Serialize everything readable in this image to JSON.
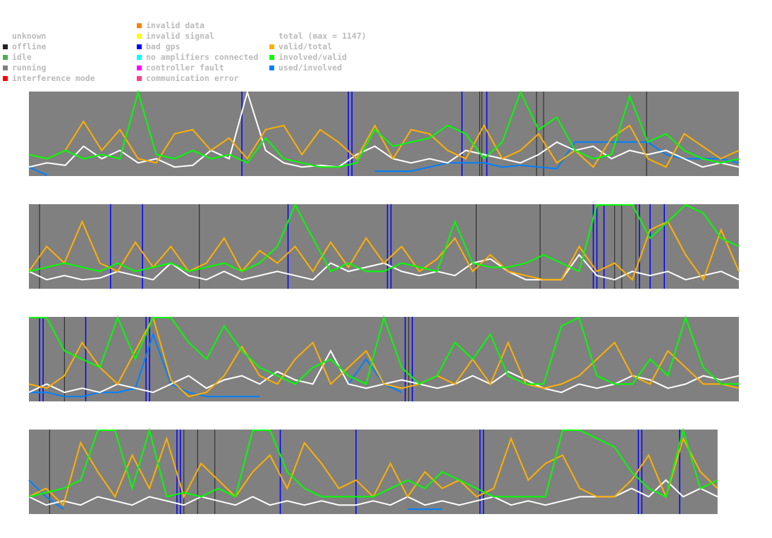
{
  "legend": {
    "col1": [
      {
        "label": "unknown",
        "color": "#ffffff"
      },
      {
        "label": "offline",
        "color": "#222222"
      },
      {
        "label": "idle",
        "color": "#4caf50"
      },
      {
        "label": "running",
        "color": "#808080"
      },
      {
        "label": "interference mode",
        "color": "#ff0000"
      }
    ],
    "col2": [
      {
        "label": "invalid data",
        "color": "#ff8000"
      },
      {
        "label": "invalid signal",
        "color": "#ffff00"
      },
      {
        "label": "bad gps",
        "color": "#0000ff"
      },
      {
        "label": "no amplifiers connected",
        "color": "#00ffff"
      },
      {
        "label": "controller fault",
        "color": "#ff00ff"
      },
      {
        "label": "communication error",
        "color": "#ff4080"
      }
    ],
    "col3": [
      {
        "label": "total (max = 1147)",
        "color": "#ffffff"
      },
      {
        "label": "valid/total",
        "color": "#ffb000"
      },
      {
        "label": "involved/valid",
        "color": "#00ff00"
      },
      {
        "label": "used/involved",
        "color": "#0080ff"
      }
    ]
  },
  "chart_data": {
    "type": "line",
    "y_range": [
      0,
      1
    ],
    "x_range": [
      0,
      100
    ],
    "colors": {
      "running": "#808080",
      "total": "#ffffff",
      "valid_total": "#ffb000",
      "involved_valid": "#00ff00",
      "used_involved": "#0080ff",
      "bad_gps": "#0000ff",
      "offline": "#222222"
    },
    "panels": [
      {
        "span": 1.0,
        "bad_gps": [
          30,
          45,
          45.5,
          61,
          64.5
        ],
        "offline": [
          63.5,
          63.8,
          71.5,
          72.5,
          87
        ],
        "valid_total": [
          0.25,
          0.2,
          0.3,
          0.65,
          0.3,
          0.55,
          0.2,
          0.15,
          0.5,
          0.55,
          0.3,
          0.45,
          0.2,
          0.55,
          0.6,
          0.25,
          0.55,
          0.4,
          0.2,
          0.6,
          0.2,
          0.55,
          0.5,
          0.3,
          0.2,
          0.6,
          0.2,
          0.3,
          0.5,
          0.15,
          0.3,
          0.1,
          0.45,
          0.6,
          0.2,
          0.1,
          0.5,
          0.35,
          0.2,
          0.3
        ],
        "involved_valid": [
          0.25,
          0.2,
          0.3,
          0.2,
          0.25,
          0.2,
          1.0,
          0.25,
          0.2,
          0.3,
          0.2,
          0.25,
          0.15,
          0.45,
          0.2,
          0.15,
          0.1,
          0.1,
          0.15,
          0.55,
          0.35,
          0.4,
          0.45,
          0.6,
          0.5,
          0.2,
          0.4,
          1.0,
          0.55,
          0.7,
          0.3,
          0.2,
          0.25,
          0.95,
          0.4,
          0.5,
          0.3,
          0.2,
          0.15,
          0.2
        ],
        "total": [
          0.1,
          0.15,
          0.12,
          0.35,
          0.2,
          0.3,
          0.15,
          0.2,
          0.1,
          0.12,
          0.3,
          0.2,
          1.0,
          0.3,
          0.15,
          0.1,
          0.12,
          0.1,
          0.25,
          0.35,
          0.2,
          0.15,
          0.2,
          0.15,
          0.3,
          0.25,
          0.2,
          0.15,
          0.25,
          0.4,
          0.3,
          0.35,
          0.2,
          0.3,
          0.25,
          0.3,
          0.2,
          0.1,
          0.15,
          0.1
        ],
        "used_involved": [
          0.1,
          0,
          null,
          null,
          null,
          null,
          null,
          null,
          null,
          null,
          null,
          null,
          null,
          null,
          null,
          null,
          null,
          null,
          null,
          0.05,
          0.05,
          0.05,
          0.1,
          0.15,
          0.15,
          0.15,
          0.1,
          0.12,
          0.1,
          0.08,
          0.4,
          0.4,
          0.4,
          0.4,
          0.4,
          0.25,
          0.2,
          0.2,
          0.2,
          0.15
        ]
      },
      {
        "span": 1.0,
        "bad_gps": [
          11.5,
          16,
          36.5,
          50.5,
          51,
          79.5,
          80,
          81,
          86,
          89.5,
          87.5
        ],
        "offline": [
          1.5,
          24,
          63,
          72,
          82.5,
          83.5,
          85.5
        ],
        "valid_total": [
          0.2,
          0.5,
          0.3,
          0.8,
          0.3,
          0.2,
          0.55,
          0.25,
          0.5,
          0.2,
          0.3,
          0.6,
          0.2,
          0.45,
          0.3,
          0.5,
          0.2,
          0.55,
          0.25,
          0.6,
          0.3,
          0.5,
          0.2,
          0.35,
          0.6,
          0.2,
          0.4,
          0.2,
          0.15,
          0.1,
          0.1,
          0.5,
          0.2,
          0.3,
          0.1,
          0.7,
          0.8,
          0.4,
          0.1,
          0.7,
          0.2
        ],
        "involved_valid": [
          0.2,
          0.25,
          0.3,
          0.25,
          0.2,
          0.3,
          0.2,
          0.25,
          0.3,
          0.2,
          0.25,
          0.3,
          0.2,
          0.3,
          0.5,
          1.0,
          0.6,
          0.2,
          0.3,
          0.2,
          0.2,
          0.3,
          0.25,
          0.2,
          0.8,
          0.3,
          0.25,
          0.25,
          0.3,
          0.4,
          0.3,
          0.2,
          1.0,
          1.0,
          1.0,
          0.6,
          0.8,
          1.0,
          0.9,
          0.6,
          0.5
        ],
        "total": [
          0.2,
          0.1,
          0.15,
          0.1,
          0.12,
          0.2,
          0.15,
          0.1,
          0.3,
          0.15,
          0.1,
          0.2,
          0.1,
          0.15,
          0.2,
          0.15,
          0.1,
          0.3,
          0.2,
          0.25,
          0.3,
          0.2,
          0.15,
          0.2,
          0.15,
          0.3,
          0.35,
          0.2,
          0.1,
          0.1,
          0.1,
          0.4,
          0.15,
          0.1,
          0.2,
          0.15,
          0.2,
          0.1,
          0.15,
          0.2,
          0.1
        ],
        "used_involved": []
      },
      {
        "span": 1.0,
        "bad_gps": [
          1.5,
          2,
          8,
          16.5,
          17,
          53,
          54
        ],
        "offline": [
          5,
          53.5
        ],
        "valid_total": [
          0.2,
          0.15,
          0.3,
          0.7,
          0.4,
          0.2,
          0.6,
          1.0,
          0.25,
          0.05,
          0.1,
          0.3,
          0.65,
          0.3,
          0.2,
          0.5,
          0.7,
          0.2,
          0.4,
          0.6,
          0.2,
          0.15,
          0.2,
          0.3,
          0.2,
          0.5,
          0.2,
          0.7,
          0.2,
          0.15,
          0.2,
          0.3,
          0.5,
          0.7,
          0.3,
          0.2,
          0.6,
          0.4,
          0.2,
          0.2,
          0.15
        ],
        "involved_valid": [
          1.0,
          1.0,
          0.6,
          0.5,
          0.4,
          1.0,
          0.5,
          1.0,
          1.0,
          0.7,
          0.5,
          0.9,
          0.6,
          0.4,
          0.3,
          0.2,
          0.4,
          0.5,
          0.3,
          0.2,
          1.0,
          0.4,
          0.2,
          0.3,
          0.7,
          0.5,
          0.8,
          0.3,
          0.2,
          0.2,
          0.9,
          1.0,
          0.3,
          0.2,
          0.2,
          0.5,
          0.3,
          1.0,
          0.4,
          0.2,
          0.2
        ],
        "total": [
          0.1,
          0.2,
          0.1,
          0.15,
          0.1,
          0.2,
          0.15,
          0.1,
          0.2,
          0.3,
          0.15,
          0.25,
          0.3,
          0.2,
          0.35,
          0.25,
          0.2,
          0.6,
          0.2,
          0.15,
          0.2,
          0.25,
          0.2,
          0.15,
          0.2,
          0.3,
          0.2,
          0.35,
          0.25,
          0.15,
          0.1,
          0.2,
          0.15,
          0.2,
          0.3,
          0.25,
          0.15,
          0.2,
          0.3,
          0.25,
          0.3
        ],
        "used_involved": [
          0.1,
          0.1,
          0.05,
          0.05,
          0.1,
          0.1,
          0.15,
          0.8,
          0.2,
          0.1,
          0.05,
          0.05,
          0.05,
          0.05,
          null,
          null,
          null,
          null,
          0.2,
          0.5,
          0.2,
          0.1,
          null,
          null,
          null,
          null,
          null,
          null,
          null,
          null,
          null,
          null,
          null,
          null,
          null,
          null,
          null,
          null,
          null,
          null,
          0.2
        ]
      },
      {
        "span": 0.97,
        "bad_gps": [
          21.5,
          22,
          36.5,
          47.5,
          65.5,
          66,
          88.5,
          89,
          94.5
        ],
        "offline": [
          3,
          24.5,
          27,
          22.5
        ],
        "valid_total": [
          0.2,
          0.3,
          0.1,
          0.85,
          0.5,
          0.2,
          0.7,
          0.3,
          0.9,
          0.2,
          0.6,
          0.4,
          0.2,
          0.5,
          0.7,
          0.3,
          0.85,
          0.6,
          0.3,
          0.4,
          0.2,
          0.6,
          0.2,
          0.5,
          0.3,
          0.4,
          0.2,
          0.3,
          0.9,
          0.4,
          0.6,
          0.7,
          0.3,
          0.2,
          0.2,
          0.4,
          0.7,
          0.2,
          0.9,
          0.5,
          0.3
        ],
        "involved_valid": [
          0.2,
          0.25,
          0.3,
          0.4,
          1.0,
          1.0,
          0.3,
          1.0,
          0.2,
          0.25,
          0.2,
          0.3,
          0.2,
          1.0,
          1.0,
          0.5,
          0.3,
          0.2,
          0.2,
          0.2,
          0.2,
          0.3,
          0.4,
          0.3,
          0.5,
          0.4,
          0.3,
          0.2,
          0.2,
          0.2,
          0.2,
          1.0,
          1.0,
          0.9,
          0.8,
          0.5,
          0.3,
          0.2,
          1.0,
          0.3,
          0.4
        ],
        "total": [
          0.2,
          0.1,
          0.15,
          0.1,
          0.2,
          0.15,
          0.1,
          0.2,
          0.15,
          0.1,
          0.2,
          0.15,
          0.1,
          0.2,
          0.1,
          0.15,
          0.1,
          0.15,
          0.1,
          0.1,
          0.15,
          0.1,
          0.2,
          0.1,
          0.15,
          0.1,
          0.15,
          0.2,
          0.1,
          0.15,
          0.1,
          0.15,
          0.2,
          0.2,
          0.2,
          0.3,
          0.2,
          0.4,
          0.2,
          0.3,
          0.2
        ],
        "used_involved": [
          0.4,
          0.2,
          0.05,
          null,
          null,
          null,
          null,
          null,
          null,
          null,
          null,
          null,
          null,
          null,
          null,
          null,
          null,
          null,
          null,
          null,
          null,
          null,
          0.05,
          0.05,
          0.05,
          null,
          null,
          null,
          null,
          null,
          null,
          null,
          null,
          null,
          null,
          null,
          null,
          null,
          null,
          null,
          null
        ]
      }
    ]
  }
}
